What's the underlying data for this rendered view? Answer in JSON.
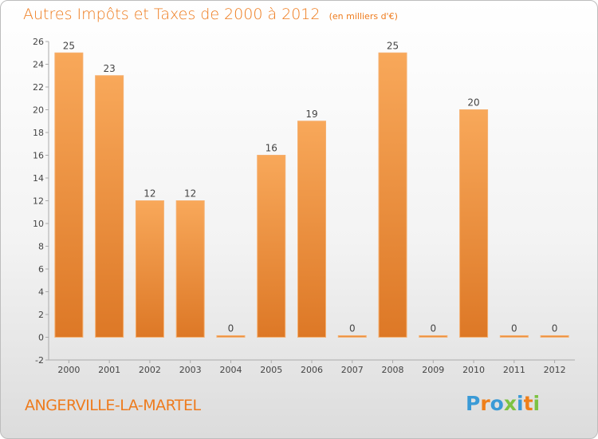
{
  "title": "Autres Impôts et Taxes de 2000 à 2012",
  "subtitle": "(en milliers d'€)",
  "commune": "ANGERVILLE-LA-MARTEL",
  "logo_text": "Proxiti",
  "colors": {
    "accent": "#ee7b1d",
    "bar_light": "#f8a85a",
    "bar_dark": "#dd7826",
    "logo_letters": [
      "#3a9ad6",
      "#ef7f1a",
      "#3a9ad6",
      "#7cc242",
      "#3a9ad6",
      "#ef7f1a",
      "#7cc242"
    ]
  },
  "chart_data": {
    "type": "bar",
    "categories": [
      "2000",
      "2001",
      "2002",
      "2003",
      "2004",
      "2005",
      "2006",
      "2007",
      "2008",
      "2009",
      "2010",
      "2011",
      "2012"
    ],
    "values": [
      25,
      23,
      12,
      12,
      0,
      16,
      19,
      0,
      25,
      0,
      20,
      0,
      0
    ],
    "ylim": [
      -2,
      26
    ],
    "yticks": [
      -2,
      0,
      2,
      4,
      6,
      8,
      10,
      12,
      14,
      16,
      18,
      20,
      22,
      24,
      26
    ],
    "grid": false,
    "data_labels": true
  }
}
